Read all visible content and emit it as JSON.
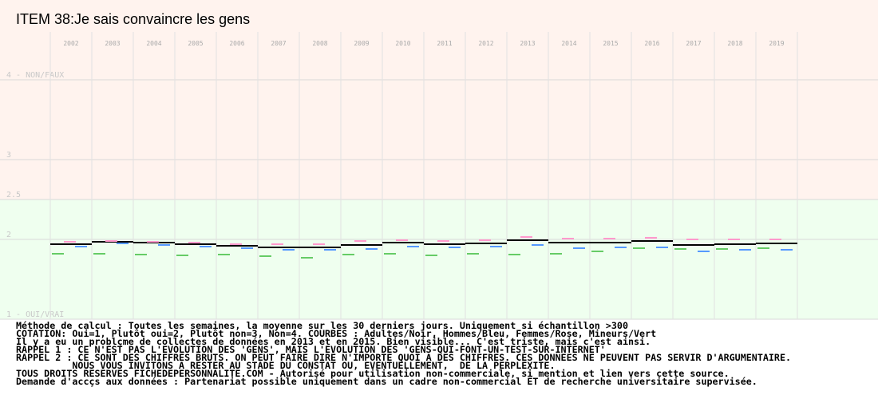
{
  "chart_data": {
    "type": "dash",
    "title": "ITEM 38:Je sais convaincre les gens",
    "categories": [
      "2002",
      "2003",
      "2004",
      "2005",
      "2006",
      "2007",
      "2008",
      "2009",
      "2010",
      "2011",
      "2012",
      "2013",
      "2014",
      "2015",
      "2016",
      "2017",
      "2018",
      "2019"
    ],
    "ylim": [
      1,
      4
    ],
    "yticks": [
      {
        "value": 1,
        "label": "1 - OUI/VRAI"
      },
      2,
      2.5,
      3,
      {
        "value": 4,
        "label": "4 - NON/FAUX"
      }
    ],
    "grid": true,
    "series": [
      {
        "color": "#000000",
        "values": [
          1.94,
          1.97,
          1.96,
          1.94,
          1.92,
          1.9,
          1.9,
          1.93,
          1.96,
          1.94,
          1.95,
          1.99,
          1.96,
          1.96,
          1.98,
          1.93,
          1.94,
          1.95
        ]
      },
      {
        "color": "#ff99cc",
        "values": [
          1.97,
          1.98,
          1.97,
          1.96,
          1.94,
          1.94,
          1.94,
          1.98,
          1.99,
          1.98,
          1.99,
          2.03,
          2.01,
          2.01,
          2.02,
          2.0,
          2.0,
          2.0
        ]
      },
      {
        "color": "#5599ff",
        "values": [
          1.91,
          1.95,
          1.93,
          1.91,
          1.89,
          1.87,
          1.87,
          1.88,
          1.91,
          1.9,
          1.91,
          1.93,
          1.89,
          1.9,
          1.9,
          1.85,
          1.87,
          1.87
        ]
      },
      {
        "color": "#66cc66",
        "values": [
          1.82,
          1.82,
          1.81,
          1.8,
          1.81,
          1.79,
          1.77,
          1.81,
          1.82,
          1.8,
          1.82,
          1.81,
          1.82,
          1.85,
          1.89,
          1.88,
          1.88,
          1.89
        ]
      }
    ],
    "notes": [
      "Méthode de calcul : Toutes les semaines, la moyenne sur les 30 derniers jours. Uniquement si échantillon >300",
      "COTATION: Oui=1, Plutôt oui=2, Plutôt non=3, Non=4. COURBES : Adultes/Noir, Hommes/Bleu, Femmes/Rose, Mineurs/Vert",
      "Il y a eu un problçme de collectes de données en 2013 et en 2015. Bien visible... C'est triste, mais c'est ainsi.",
      "RAPPEL 1 : CE N'EST PAS L'EVOLUTION DES 'GENS', MAIS L'EVOLUTION DES 'GENS-QUI-FONT-UN-TEST-SUR-INTERNET'",
      "RAPPEL 2 : CE SONT DES CHIFFRES BRUTS. ON PEUT FAIRE DIRE N'IMPORTE QUOI A DES CHIFFRES. CES DONNEES NE PEUVENT PAS SERVIR D'ARGUMENTAIRE.",
      "          NOUS VOUS INVITONS A RESTER AU STADE DU CONSTAT OU, EVENTUELLEMENT,  DE LA PERPLEXITE.",
      "TOUS DROITS RESERVES FICHEDEPERSONNALITE.COM - Autorisé pour utilisation non-commerciale, si mention et lien vers cette source.",
      "Demande d'accçs aux données : Partenariat possible uniquement dans un cadre non-commercial ET de recherche universitaire supervisée."
    ]
  }
}
